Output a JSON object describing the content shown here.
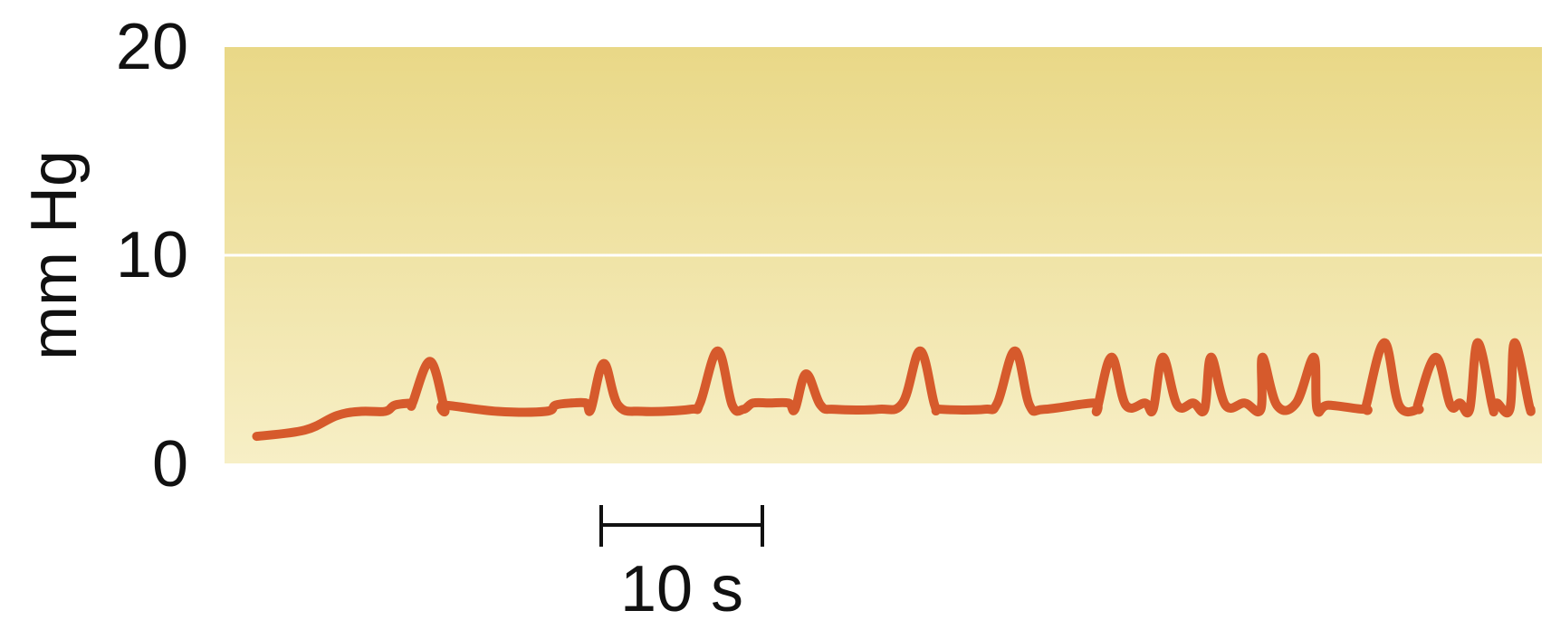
{
  "chart_data": {
    "type": "line",
    "ylabel": "mm Hg",
    "ylim": [
      0,
      20
    ],
    "yticks": [
      "0",
      "10",
      "20"
    ],
    "grid_lines_y": [
      10
    ],
    "scale_bar": {
      "label": "10 s",
      "seconds": 10
    },
    "x_range_seconds": [
      0,
      82
    ],
    "colors": {
      "trace": "#d65a2c",
      "bg_top": "#e9d887",
      "bg_bottom": "#f7efc6",
      "grid": "#ffffff"
    },
    "series": [
      {
        "baseline": [
          [
            2,
            1.3
          ],
          [
            5,
            1.6
          ],
          [
            7,
            2.3
          ],
          [
            8.5,
            2.5
          ],
          [
            10,
            2.5
          ],
          [
            10.6,
            2.8
          ],
          [
            11.6,
            2.9
          ],
          [
            13.7,
            2.6
          ],
          [
            17,
            2.5
          ],
          [
            20,
            2.5
          ],
          [
            20.6,
            2.8
          ],
          [
            21.6,
            2.9
          ],
          [
            22.8,
            2.6
          ],
          [
            26,
            2.5
          ],
          [
            29,
            2.6
          ],
          [
            32.3,
            2.6
          ],
          [
            32.9,
            2.9
          ],
          [
            33.9,
            2.9
          ],
          [
            35.5,
            2.6
          ],
          [
            38,
            2.6
          ],
          [
            40.7,
            2.6
          ],
          [
            44.6,
            2.6
          ],
          [
            47.3,
            2.6
          ],
          [
            51,
            2.6
          ],
          [
            54.3,
            2.6
          ],
          [
            57.8,
            2.6
          ],
          [
            61,
            2.6
          ],
          [
            64.5,
            2.6
          ],
          [
            68,
            2.6
          ],
          [
            71,
            2.6
          ],
          [
            74.3,
            2.6
          ],
          [
            77.5,
            2.6
          ],
          [
            79,
            2.6
          ]
        ],
        "peaks": [
          [
            12.8,
            4.9
          ],
          [
            23.6,
            4.8
          ],
          [
            30.7,
            5.4
          ],
          [
            36.2,
            4.3
          ],
          [
            43.3,
            5.4
          ],
          [
            49.2,
            5.4
          ],
          [
            55.2,
            5.1
          ],
          [
            58.4,
            5.1
          ],
          [
            61.4,
            5.1
          ],
          [
            64.6,
            5.1
          ],
          [
            67.8,
            5.1
          ],
          [
            72.2,
            5.8
          ],
          [
            75.4,
            5.1
          ],
          [
            78.0,
            5.8
          ],
          [
            80.3,
            5.8
          ]
        ],
        "end": [
          [
            80.0,
            2.6
          ],
          [
            81.3,
            2.6
          ]
        ]
      }
    ]
  }
}
